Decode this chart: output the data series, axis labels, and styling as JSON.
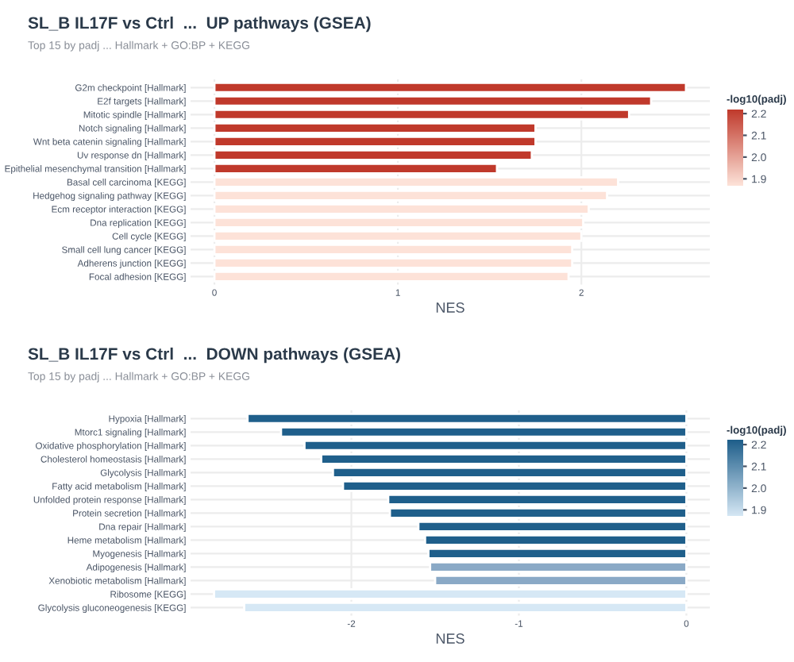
{
  "chart_data": [
    {
      "type": "bar",
      "orientation": "horizontal",
      "title": "SL_B IL17F vs Ctrl  ...  UP pathways (GSEA)",
      "subtitle": "Top 15 by padj ... Hallmark + GO:BP + KEGG",
      "xlabel": "NES",
      "clabel": "-log10(padj)",
      "categories": [
        "G2m checkpoint [Hallmark]",
        "E2f targets [Hallmark]",
        "Mitotic spindle [Hallmark]",
        "Notch signaling [Hallmark]",
        "Wnt beta catenin signaling [Hallmark]",
        "Uv response dn [Hallmark]",
        "Epithelial mesenchymal transition [Hallmark]",
        "Basal cell carcinoma [KEGG]",
        "Hedgehog signaling pathway [KEGG]",
        "Ecm receptor interaction [KEGG]",
        "Dna replication [KEGG]",
        "Cell cycle [KEGG]",
        "Small cell lung cancer [KEGG]",
        "Adherens junction [KEGG]",
        "Focal adhesion [KEGG]"
      ],
      "values": [
        2.57,
        2.38,
        2.26,
        1.75,
        1.75,
        1.73,
        1.54,
        2.2,
        2.14,
        2.04,
        2.01,
        2.0,
        1.95,
        1.95,
        1.93
      ],
      "colors": [
        "#c0392b",
        "#c0392b",
        "#c0392b",
        "#c0392b",
        "#c0392b",
        "#c0392b",
        "#c0392b",
        "#fde2d8",
        "#fde2d8",
        "#fde2d8",
        "#fde2d8",
        "#fde2d8",
        "#fde2d8",
        "#fde2d8",
        "#fde2d8"
      ],
      "xlim": [
        -0.13,
        2.7
      ],
      "xticks": [
        0,
        1,
        2
      ],
      "clim": [
        1.87,
        2.22
      ],
      "cticks": [
        1.9,
        {
          "value": 2,
          "label": "2.0"
        },
        2.1,
        2.2
      ],
      "grid": true
    },
    {
      "type": "bar",
      "orientation": "horizontal",
      "title": "SL_B IL17F vs Ctrl  ...  DOWN pathways (GSEA)",
      "subtitle": "Top 15 by padj ... Hallmark + GO:BP + KEGG",
      "xlabel": "NES",
      "clabel": "-log10(padj)",
      "categories": [
        "Hypoxia [Hallmark]",
        "Mtorc1 signaling [Hallmark]",
        "Oxidative phosphorylation [Hallmark]",
        "Cholesterol homeostasis [Hallmark]",
        "Glycolysis [Hallmark]",
        "Fatty acid metabolism [Hallmark]",
        "Unfolded protein response [Hallmark]",
        "Protein secretion [Hallmark]",
        "Dna repair [Hallmark]",
        "Heme metabolism [Hallmark]",
        "Myogenesis [Hallmark]",
        "Adipogenesis [Hallmark]",
        "Xenobiotic metabolism [Hallmark]",
        "Ribosome [KEGG]",
        "Glycolysis gluconeogenesis [KEGG]"
      ],
      "values": [
        -2.62,
        -2.42,
        -2.28,
        -2.18,
        -2.11,
        -2.05,
        -1.78,
        -1.77,
        -1.6,
        -1.56,
        -1.54,
        -1.53,
        -1.5,
        -2.82,
        -2.64
      ],
      "colors": [
        "#1f5f8b",
        "#1f5f8b",
        "#1f5f8b",
        "#1f5f8b",
        "#1f5f8b",
        "#1f5f8b",
        "#1f5f8b",
        "#1f5f8b",
        "#1f5f8b",
        "#1f5f8b",
        "#1f5f8b",
        "#8aa9c6",
        "#8aa9c6",
        "#d6e8f5",
        "#d6e8f5"
      ],
      "xlim": [
        -2.96,
        0.14
      ],
      "xticks": [
        {
          "value": -2,
          "label": "-2"
        },
        {
          "value": -1,
          "label": "-1"
        },
        0
      ],
      "clim": [
        1.87,
        2.22
      ],
      "cticks": [
        1.9,
        {
          "value": 2,
          "label": "2.0"
        },
        2.1,
        2.2
      ],
      "grid": true
    }
  ]
}
